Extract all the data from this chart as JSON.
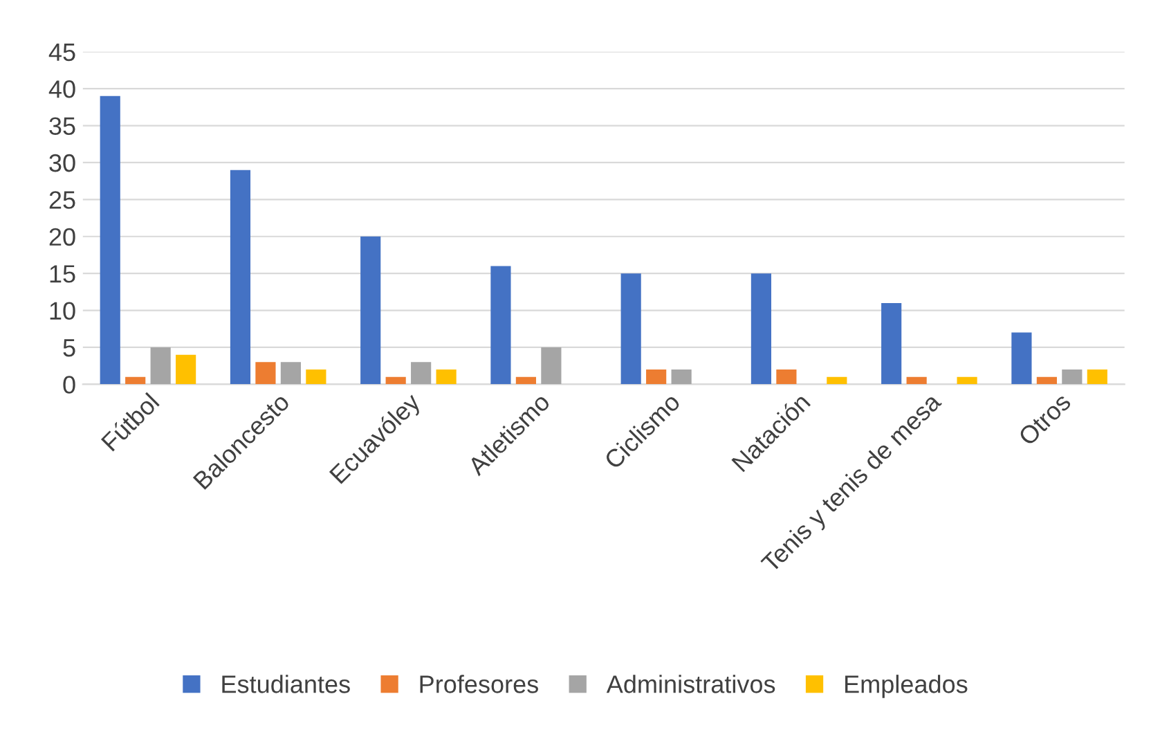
{
  "chart_data": {
    "type": "bar",
    "categories": [
      "Fútbol",
      "Baloncesto",
      "Ecuavóley",
      "Atletismo",
      "Ciclismo",
      "Natación",
      "Tenis y tenis de mesa",
      "Otros"
    ],
    "series": [
      {
        "name": "Estudiantes",
        "color": "#4472c4",
        "values": [
          39,
          29,
          20,
          16,
          15,
          15,
          11,
          7
        ]
      },
      {
        "name": "Profesores",
        "color": "#ed7d31",
        "values": [
          1,
          3,
          1,
          1,
          2,
          2,
          1,
          1
        ]
      },
      {
        "name": "Administrativos",
        "color": "#a5a5a5",
        "values": [
          5,
          3,
          3,
          5,
          2,
          0,
          0,
          2
        ]
      },
      {
        "name": "Empleados",
        "color": "#ffc000",
        "values": [
          4,
          2,
          2,
          0,
          0,
          1,
          1,
          2
        ]
      }
    ],
    "ylim": [
      0,
      45
    ],
    "yticks": [
      0,
      5,
      10,
      15,
      20,
      25,
      30,
      35,
      40,
      45
    ],
    "grid": "y",
    "legend": "bottom"
  }
}
